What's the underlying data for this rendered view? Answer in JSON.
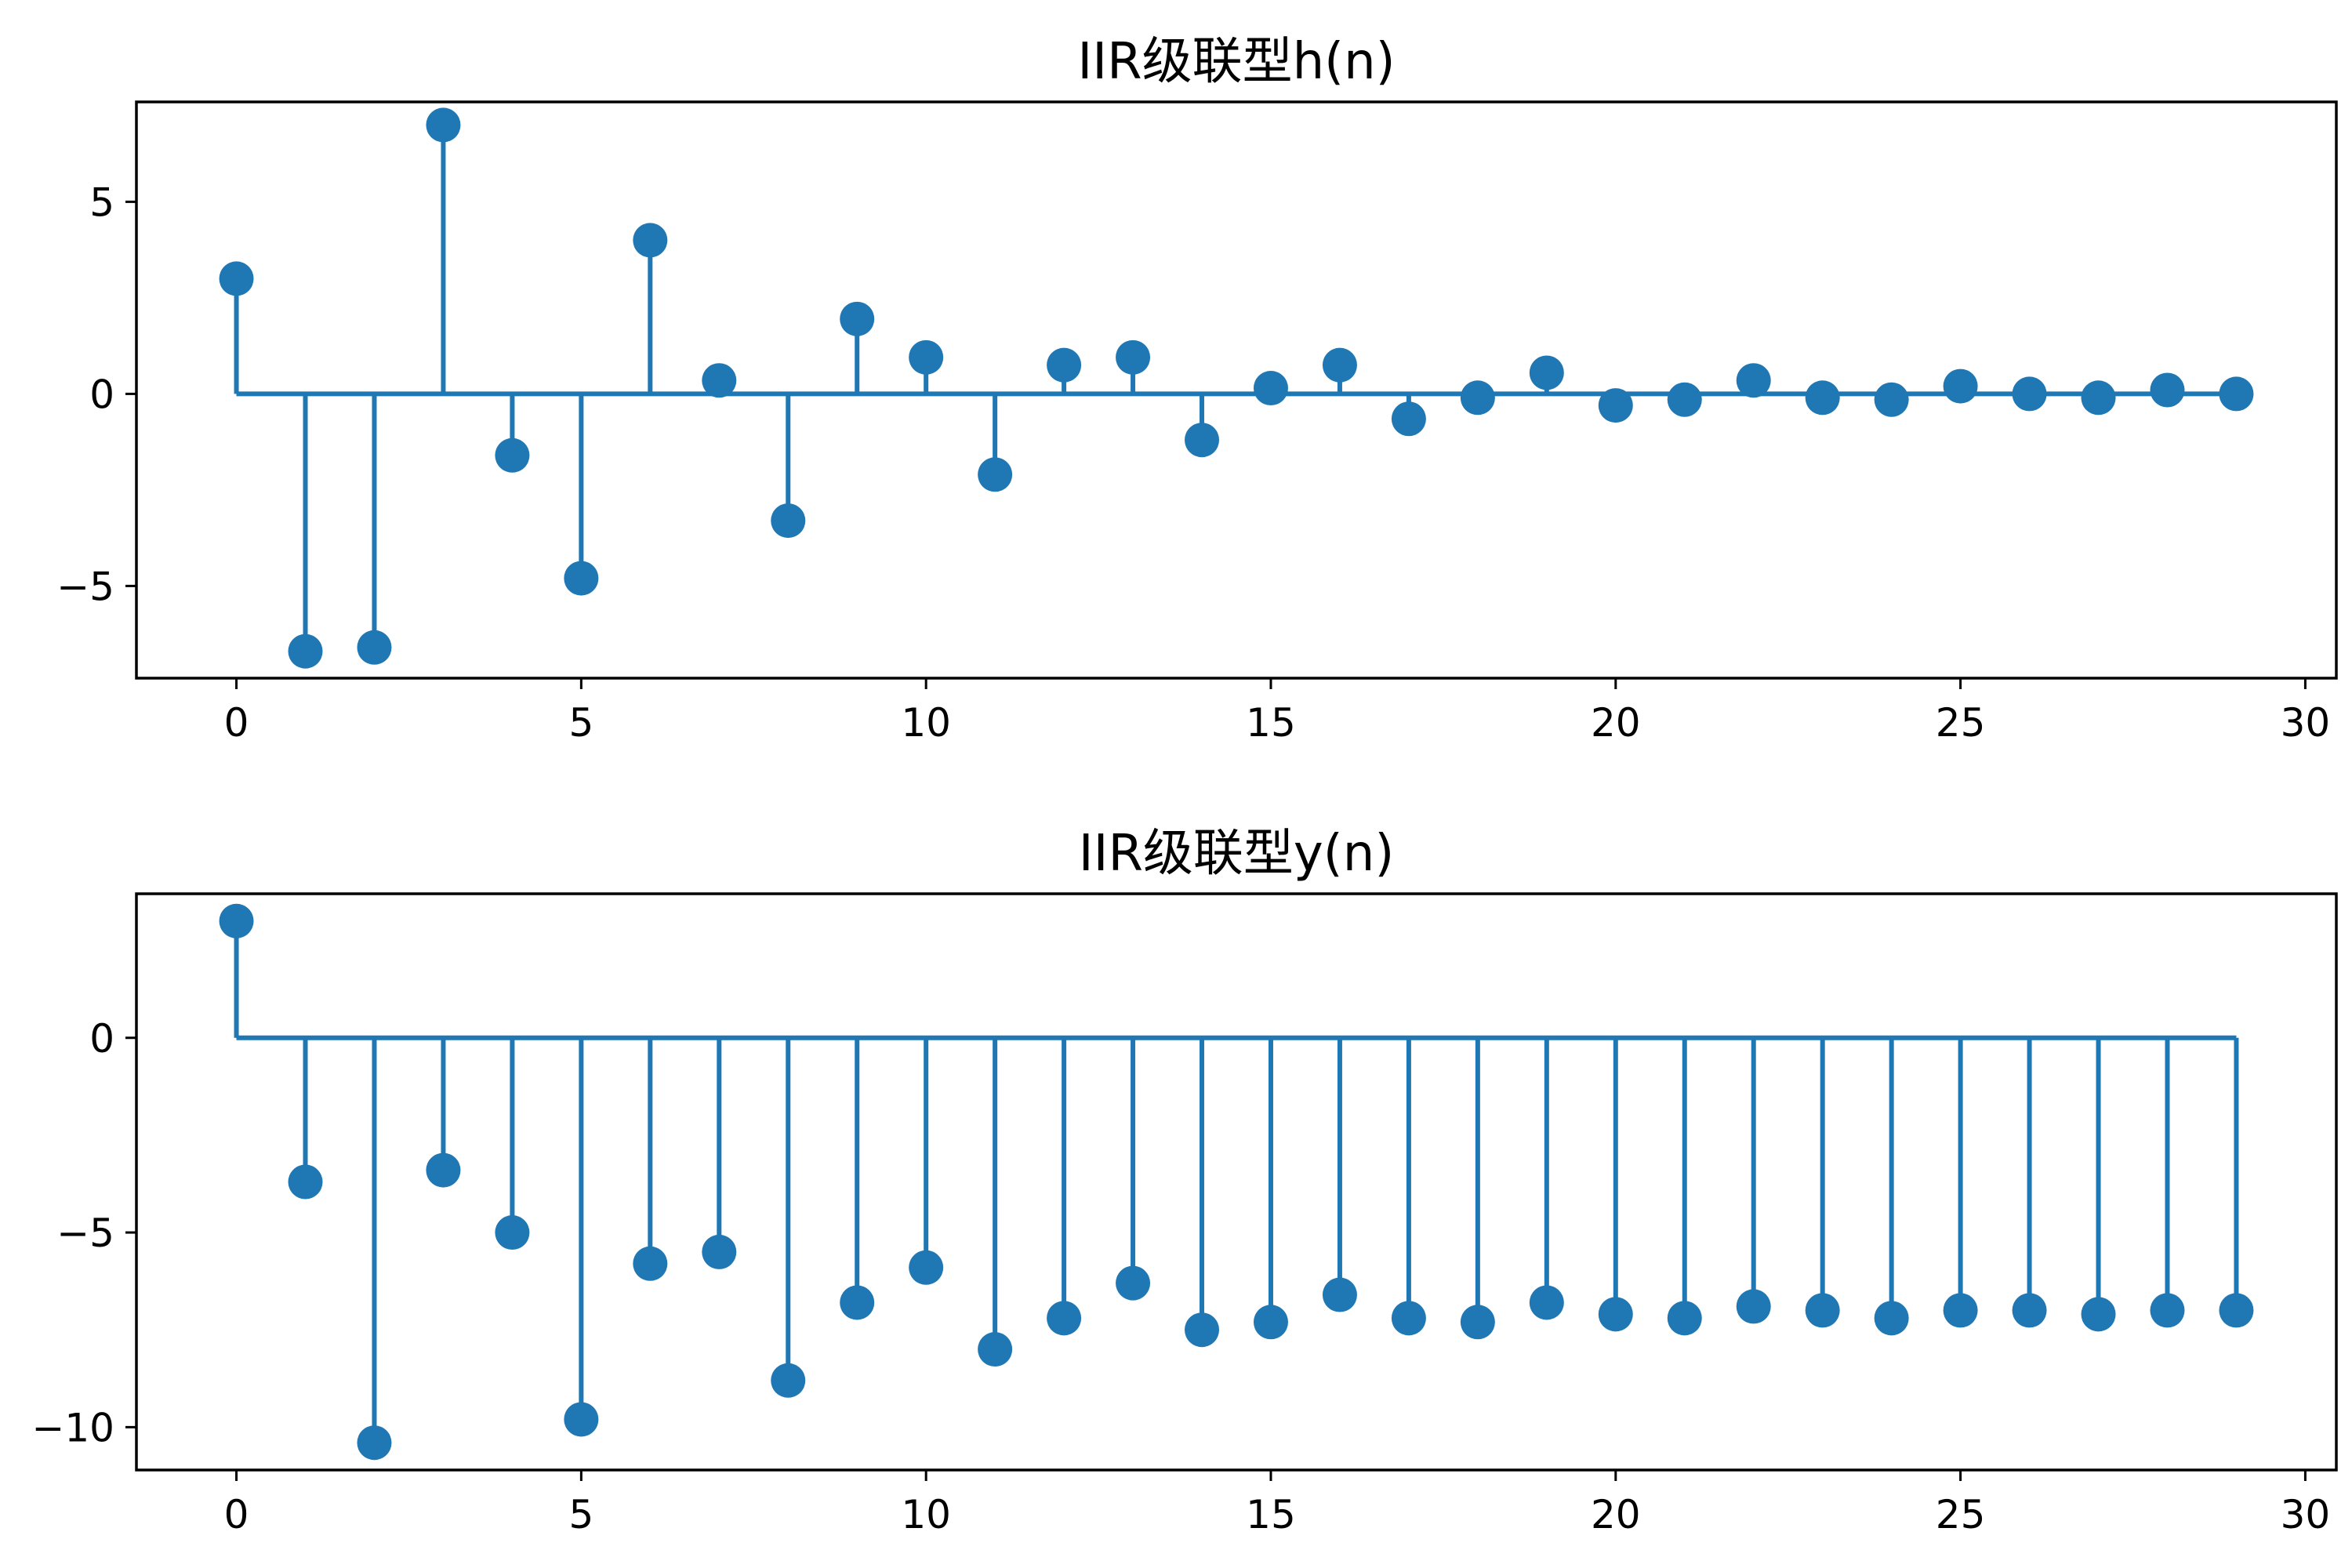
{
  "chart_data": [
    {
      "type": "stem",
      "title": "IIR级联型h(n)",
      "xlabel": "",
      "ylabel": "",
      "xlim": [
        -1.45,
        30.45
      ],
      "ylim": [
        -7.4,
        7.6
      ],
      "xticks": [
        0,
        5,
        10,
        15,
        20,
        25,
        30
      ],
      "yticks": [
        -5,
        0,
        5
      ],
      "grid": false,
      "legend": "none",
      "color": "#1f77b4",
      "x": [
        0,
        1,
        2,
        3,
        4,
        5,
        6,
        7,
        8,
        9,
        10,
        11,
        12,
        13,
        14,
        15,
        16,
        17,
        18,
        19,
        20,
        21,
        22,
        23,
        24,
        25,
        26,
        27,
        28,
        29
      ],
      "values": [
        3.0,
        -6.7,
        -6.6,
        7.0,
        -1.6,
        -4.8,
        4.0,
        0.35,
        -3.3,
        1.95,
        0.95,
        -2.1,
        0.75,
        0.95,
        -1.2,
        0.15,
        0.75,
        -0.65,
        -0.1,
        0.55,
        -0.3,
        -0.15,
        0.35,
        -0.1,
        -0.15,
        0.2,
        0.0,
        -0.1,
        0.1,
        0.0
      ]
    },
    {
      "type": "stem",
      "title": "IIR级联型y(n)",
      "xlabel": "",
      "ylabel": "",
      "xlim": [
        -1.45,
        30.45
      ],
      "ylim": [
        -11.1,
        3.7
      ],
      "xticks": [
        0,
        5,
        10,
        15,
        20,
        25,
        30
      ],
      "yticks": [
        -10,
        -5,
        0
      ],
      "grid": false,
      "legend": "none",
      "color": "#1f77b4",
      "x": [
        0,
        1,
        2,
        3,
        4,
        5,
        6,
        7,
        8,
        9,
        10,
        11,
        12,
        13,
        14,
        15,
        16,
        17,
        18,
        19,
        20,
        21,
        22,
        23,
        24,
        25,
        26,
        27,
        28,
        29
      ],
      "values": [
        3.0,
        -3.7,
        -10.4,
        -3.4,
        -5.0,
        -9.8,
        -5.8,
        -5.5,
        -8.8,
        -6.8,
        -5.9,
        -8.0,
        -7.2,
        -6.3,
        -7.5,
        -7.3,
        -6.6,
        -7.2,
        -7.3,
        -6.8,
        -7.1,
        -7.2,
        -6.9,
        -7.0,
        -7.2,
        -7.0,
        -7.0,
        -7.1,
        -7.0,
        -7.0
      ]
    }
  ]
}
